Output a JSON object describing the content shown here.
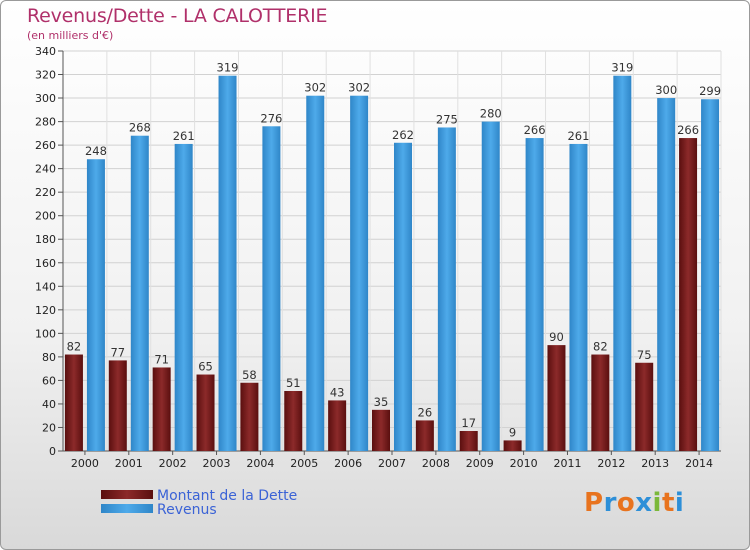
{
  "title": "Revenus/Dette - LA CALOTTERIE",
  "subtitle": "(en milliers d'€)",
  "logo_text": "Proxiti",
  "colors": {
    "dette": "#7a1f1f",
    "revenus": "#3d9ee2",
    "title": "#b0306a",
    "legend_text": "#3b63d6"
  },
  "chart_data": {
    "type": "bar",
    "categories": [
      "2000",
      "2001",
      "2002",
      "2003",
      "2004",
      "2005",
      "2006",
      "2007",
      "2008",
      "2009",
      "2010",
      "2011",
      "2012",
      "2013",
      "2014"
    ],
    "series": [
      {
        "name": "Montant de la Dette",
        "values": [
          82,
          77,
          71,
          65,
          58,
          51,
          43,
          35,
          26,
          17,
          9,
          90,
          82,
          75,
          266
        ]
      },
      {
        "name": "Revenus",
        "values": [
          248,
          268,
          261,
          319,
          276,
          302,
          302,
          262,
          275,
          280,
          266,
          261,
          319,
          300,
          299
        ]
      }
    ],
    "ylim": [
      0,
      340
    ],
    "yticks": [
      0,
      20,
      40,
      60,
      80,
      100,
      120,
      140,
      160,
      180,
      200,
      220,
      240,
      260,
      280,
      300,
      320,
      340
    ],
    "grid": true,
    "legend_position": "bottom-left"
  }
}
